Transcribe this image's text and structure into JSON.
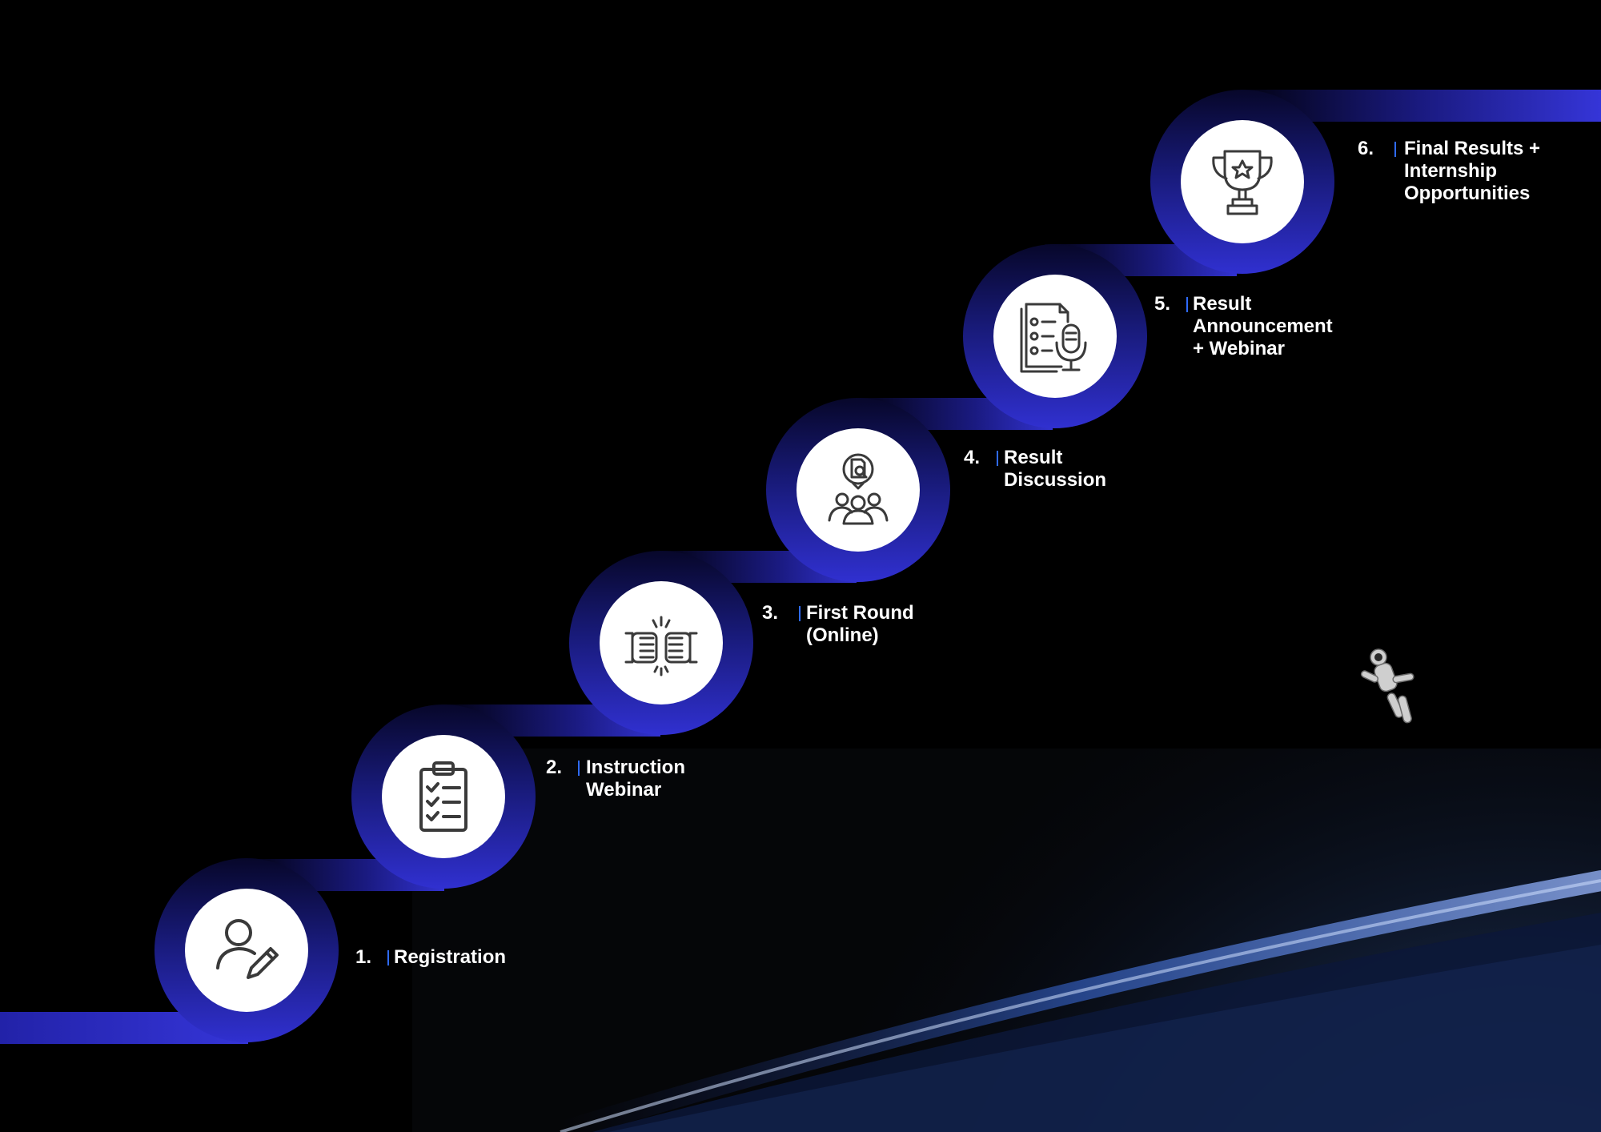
{
  "steps": [
    {
      "number": "1.",
      "title": "Registration",
      "icon": "user-edit-icon"
    },
    {
      "number": "2.",
      "title": "Instruction\nWebinar",
      "icon": "clipboard-checklist-icon"
    },
    {
      "number": "3.",
      "title": "First Round\n(Online)",
      "icon": "fist-bump-icon"
    },
    {
      "number": "4.",
      "title": "Result\nDiscussion",
      "icon": "group-discussion-icon"
    },
    {
      "number": "5.",
      "title": "Result\nAnnouncement\n+ Webinar",
      "icon": "document-microphone-icon"
    },
    {
      "number": "6.",
      "title": "Final Results +\nInternship\nOpportunities",
      "icon": "trophy-icon"
    }
  ],
  "colors": {
    "background": "#000000",
    "accent": "#3535d8",
    "accent_dark": "#07072a",
    "label_bar": "#2f6bff",
    "text": "#ffffff"
  },
  "decorations": [
    "earth-horizon",
    "astronaut-icon"
  ]
}
